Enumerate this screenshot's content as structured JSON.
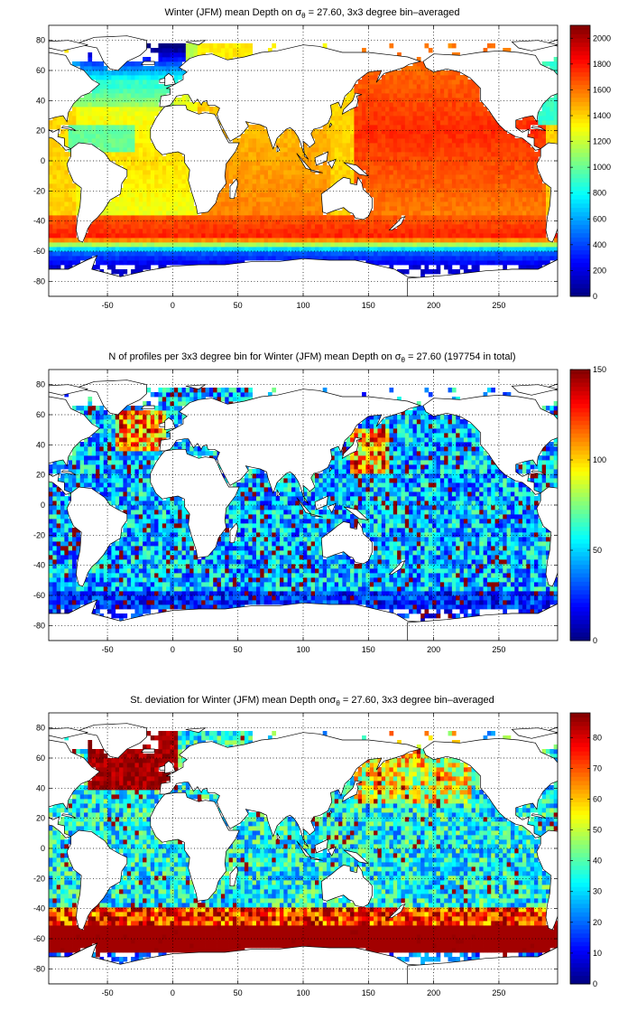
{
  "chart_data": [
    {
      "type": "heatmap",
      "title_prefix": "Winter (JFM) mean Depth on ",
      "title_symbol": "σ",
      "title_sub": "θ",
      "title_suffix": " = 27.60, 3x3 degree bin–averaged",
      "x_ticks": [
        "-50",
        "0",
        "50",
        "100",
        "150",
        "200",
        "250"
      ],
      "y_ticks": [
        "80",
        "60",
        "40",
        "20",
        "0",
        "-20",
        "-40",
        "-60",
        "-80"
      ],
      "xlim": [
        -95,
        295
      ],
      "ylim": [
        -90,
        90
      ],
      "colorbar_ticks": [
        "2000",
        "1800",
        "1600",
        "1400",
        "1200",
        "1000",
        "800",
        "600",
        "400",
        "200",
        "0"
      ],
      "colorbar_range": [
        0,
        2100
      ],
      "grid": true,
      "colormap": "jet",
      "field": "depth"
    },
    {
      "type": "heatmap",
      "title_prefix": "N of profiles per 3x3 degree bin for Winter (JFM) mean Depth on ",
      "title_symbol": "σ",
      "title_sub": "θ",
      "title_suffix": " = 27.60 (197754 in total)",
      "x_ticks": [
        "-50",
        "0",
        "50",
        "100",
        "150",
        "200",
        "250"
      ],
      "y_ticks": [
        "80",
        "60",
        "40",
        "20",
        "0",
        "-20",
        "-40",
        "-60",
        "-80"
      ],
      "xlim": [
        -95,
        295
      ],
      "ylim": [
        -90,
        90
      ],
      "colorbar_ticks": [
        "150",
        "100",
        "50",
        "0"
      ],
      "colorbar_range": [
        0,
        150
      ],
      "grid": true,
      "colormap": "jet",
      "field": "count"
    },
    {
      "type": "heatmap",
      "title_prefix": "St. deviation for Winter (JFM) mean Depth on",
      "title_symbol": "σ",
      "title_sub": "θ",
      "title_suffix": " = 27.60, 3x3 degree bin–averaged",
      "x_ticks": [
        "-50",
        "0",
        "50",
        "100",
        "150",
        "200",
        "250"
      ],
      "y_ticks": [
        "80",
        "60",
        "40",
        "20",
        "0",
        "-20",
        "-40",
        "-60",
        "-80"
      ],
      "xlim": [
        -95,
        295
      ],
      "ylim": [
        -90,
        90
      ],
      "colorbar_ticks": [
        "80",
        "70",
        "60",
        "50",
        "40",
        "30",
        "20",
        "10",
        "0"
      ],
      "colorbar_range": [
        0,
        88
      ],
      "grid": true,
      "colormap": "jet",
      "field": "std"
    }
  ]
}
